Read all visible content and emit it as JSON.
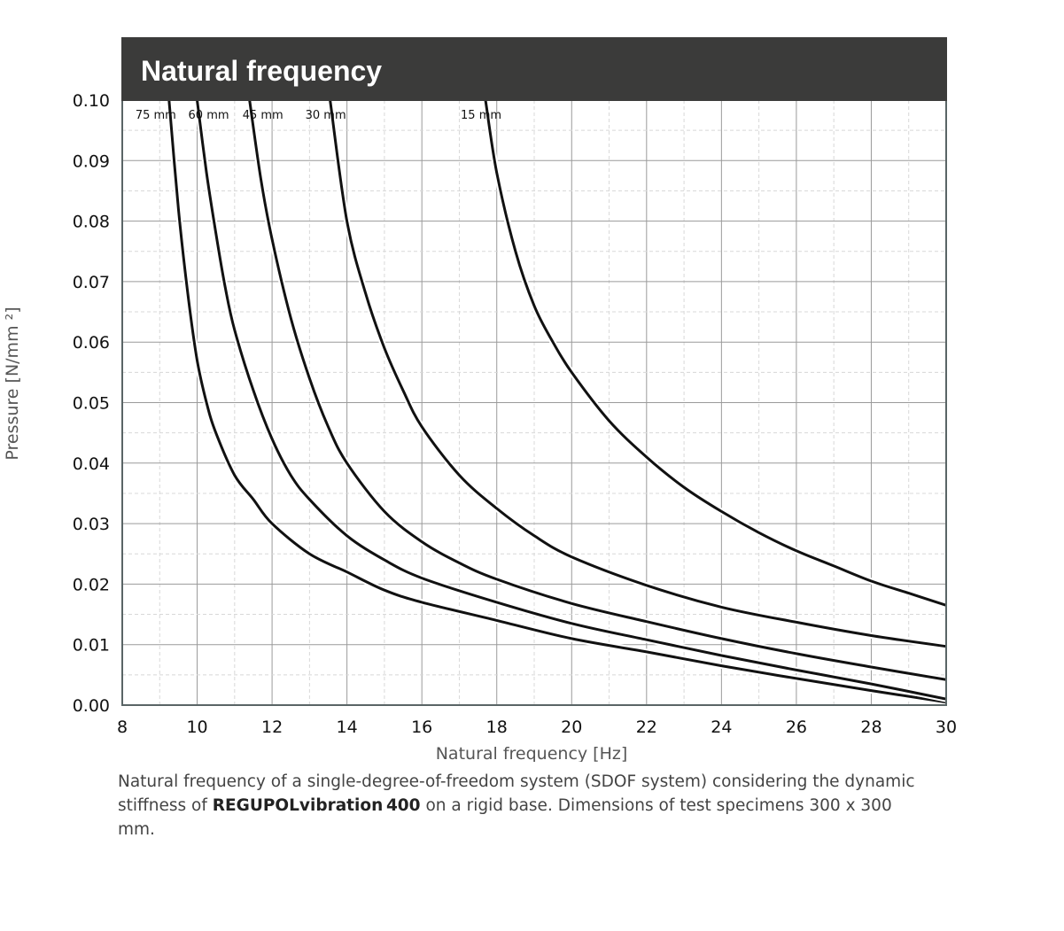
{
  "chart_data": {
    "type": "line",
    "title": "Natural frequency",
    "xlabel": "Natural frequency [Hz]",
    "ylabel": "Pressure [N/mm ²]",
    "xlim": [
      8,
      30
    ],
    "ylim": [
      0,
      0.1
    ],
    "xticks": [
      "8",
      "10",
      "12",
      "14",
      "16",
      "18",
      "20",
      "22",
      "24",
      "26",
      "28",
      "30"
    ],
    "yticks": [
      "0.00",
      "0.01",
      "0.02",
      "0.03",
      "0.04",
      "0.05",
      "0.06",
      "0.07",
      "0.08",
      "0.09",
      "0.10"
    ],
    "grid": true,
    "series": [
      {
        "name": "75 mm",
        "x": [
          9.25,
          9.5,
          9.75,
          10.0,
          10.25,
          10.5,
          11.0,
          11.5,
          12.0,
          13.0,
          14.0,
          15.0,
          16.0,
          18.0,
          20.0,
          22.0,
          24.0,
          26.0,
          28.0,
          30.0
        ],
        "y": [
          0.1,
          0.082,
          0.068,
          0.057,
          0.05,
          0.045,
          0.038,
          0.034,
          0.03,
          0.025,
          0.022,
          0.019,
          0.017,
          0.014,
          0.011,
          0.0088,
          0.0065,
          0.0044,
          0.0024,
          0.0005
        ]
      },
      {
        "name": "60 mm",
        "x": [
          10.0,
          10.25,
          10.5,
          10.75,
          11.0,
          11.5,
          12.0,
          12.5,
          13.0,
          14.0,
          15.0,
          16.0,
          18.0,
          20.0,
          22.0,
          24.0,
          26.0,
          28.0,
          30.0
        ],
        "y": [
          0.1,
          0.088,
          0.078,
          0.069,
          0.062,
          0.052,
          0.044,
          0.038,
          0.034,
          0.028,
          0.024,
          0.021,
          0.017,
          0.0135,
          0.0108,
          0.0082,
          0.0058,
          0.0035,
          0.001
        ]
      },
      {
        "name": "45 mm",
        "x": [
          11.4,
          11.7,
          12.0,
          12.5,
          13.0,
          13.5,
          14.0,
          15.0,
          16.0,
          17.0,
          18.0,
          20.0,
          22.0,
          24.0,
          26.0,
          28.0,
          30.0
        ],
        "y": [
          0.1,
          0.087,
          0.077,
          0.064,
          0.054,
          0.046,
          0.04,
          0.032,
          0.027,
          0.0235,
          0.0208,
          0.0168,
          0.0138,
          0.011,
          0.0085,
          0.0063,
          0.0042
        ]
      },
      {
        "name": "30 mm",
        "x": [
          13.55,
          14.0,
          14.5,
          15.0,
          15.5,
          16.0,
          17.0,
          18.0,
          19.0,
          20.0,
          22.0,
          24.0,
          26.0,
          28.0,
          30.0
        ],
        "y": [
          0.1,
          0.08,
          0.068,
          0.059,
          0.052,
          0.046,
          0.038,
          0.0325,
          0.028,
          0.0245,
          0.0198,
          0.0162,
          0.0137,
          0.0115,
          0.0097
        ]
      },
      {
        "name": "15 mm",
        "x": [
          17.7,
          18.0,
          18.5,
          19.0,
          19.5,
          20.0,
          21.0,
          22.0,
          23.0,
          24.0,
          25.0,
          26.0,
          27.0,
          28.0,
          29.0,
          30.0
        ],
        "y": [
          0.1,
          0.088,
          0.075,
          0.066,
          0.06,
          0.055,
          0.047,
          0.041,
          0.036,
          0.032,
          0.0285,
          0.0255,
          0.023,
          0.0205,
          0.0185,
          0.0165
        ]
      }
    ],
    "colors": {
      "header": "#3b3b3a",
      "curve": "#111111",
      "grid_major": "#9a9a9a",
      "grid_minor": "#d8d8d8",
      "frame": "#5a6566"
    }
  },
  "caption": {
    "before": "Natural frequency of a single-degree-of-freedom system (SDOF system) considering the dynamic stiffness of ",
    "bold": "REGUPOLvibration 400",
    "after": " on a rigid base. Dimensions of test specimens 300 x 300 mm."
  }
}
